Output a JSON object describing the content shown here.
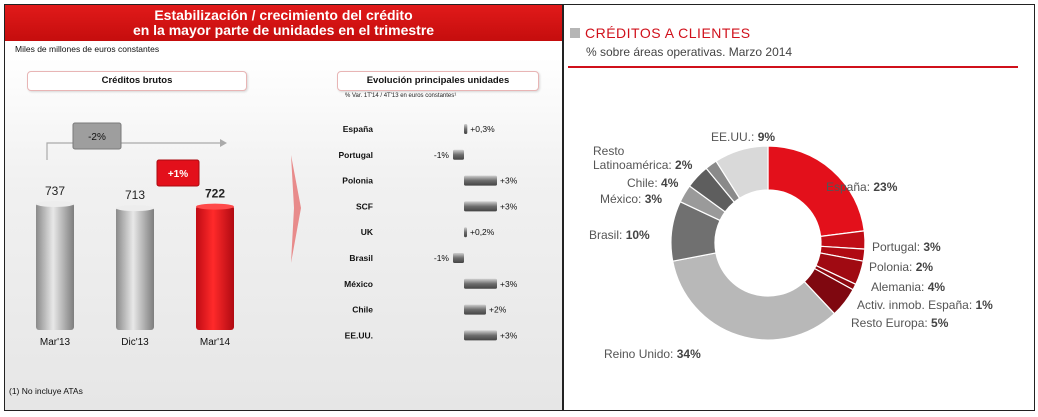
{
  "left": {
    "banner": {
      "line1": "Estabilización / crecimiento del crédito",
      "line2": "en la mayor parte de unidades en el trimestre"
    },
    "units_note": "Miles de millones de euros constantes",
    "footnote": "(1) No incluye ATAs"
  },
  "colors": {
    "red": "#e3101b",
    "grey_bar": "#a9a9a9",
    "dark_red": "#9b0a12"
  },
  "chart_data": [
    {
      "type": "bar",
      "title": "Créditos brutos",
      "categories": [
        "Mar'13",
        "Dic'13",
        "Mar'14"
      ],
      "values": [
        737,
        713,
        722
      ],
      "value_labels": [
        "737",
        "713",
        "722"
      ],
      "highlight": [
        false,
        false,
        true
      ],
      "ylim": [
        0,
        800
      ],
      "annotations": {
        "change_prev": "-2%",
        "change_qoq": "+1%"
      }
    },
    {
      "type": "bar",
      "orientation": "horizontal",
      "title": "Evolución principales unidades",
      "subtitle": "% Var.  1T'14  / 4T'13 en euros constantes¹",
      "categories": [
        "España",
        "Portugal",
        "Polonia",
        "SCF",
        "UK",
        "Brasil",
        "México",
        "Chile",
        "EE.UU."
      ],
      "values": [
        0.3,
        -1,
        3,
        3,
        0.2,
        -1,
        3,
        2,
        3
      ],
      "value_labels": [
        "+0,3%",
        "-1%",
        "+3%",
        "+3%",
        "+0,2%",
        "-1%",
        "+3%",
        "+2%",
        "+3%"
      ],
      "xlim": [
        -1,
        3
      ]
    },
    {
      "type": "pie",
      "donut": true,
      "title": "CRÉDITOS A CLIENTES",
      "subtitle": "% sobre áreas operativas. Marzo 2014",
      "slices": [
        {
          "label": "España",
          "value": 23,
          "display": "23%",
          "color": "#e3101b"
        },
        {
          "label": "Portugal",
          "value": 3,
          "display": "3%",
          "color": "#c00d17"
        },
        {
          "label": "Polonia",
          "value": 2,
          "display": "2%",
          "color": "#b00a13"
        },
        {
          "label": "Alemania",
          "value": 4,
          "display": "4%",
          "color": "#a00a12"
        },
        {
          "label": "Activ. inmob. España",
          "value": 1,
          "display": "1%",
          "color": "#8e0910"
        },
        {
          "label": "Resto Europa",
          "value": 5,
          "display": "5%",
          "color": "#7f0810"
        },
        {
          "label": "Reino Unido",
          "value": 34,
          "display": "34%",
          "color": "#b8b8b8"
        },
        {
          "label": "Brasil",
          "value": 10,
          "display": "10%",
          "color": "#707070"
        },
        {
          "label": "México",
          "value": 3,
          "display": "3%",
          "color": "#9a9a9a"
        },
        {
          "label": "Chile",
          "value": 4,
          "display": "4%",
          "color": "#5e5e5e"
        },
        {
          "label": "Resto Latinoamérica",
          "value": 2,
          "display": "2%",
          "color": "#8a8a8a"
        },
        {
          "label": "EE.UU.",
          "value": 9,
          "display": "9%",
          "color": "#d9d9d9"
        }
      ]
    }
  ]
}
